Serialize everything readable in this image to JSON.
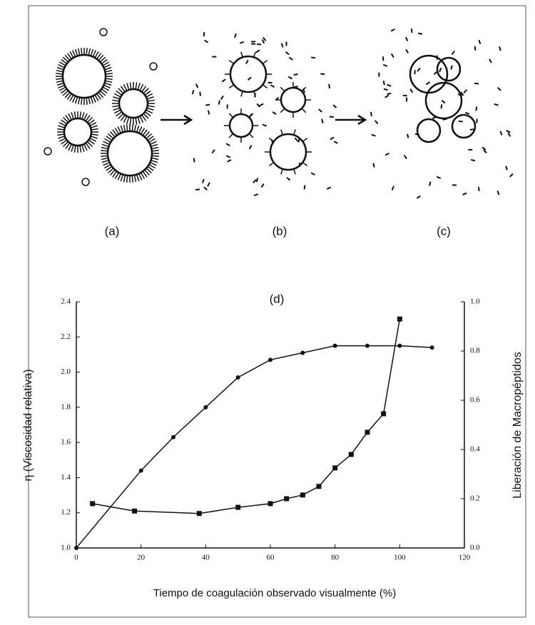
{
  "panels": [
    "(a)",
    "(b)",
    "(c)"
  ],
  "chart_data": {
    "type": "line",
    "title": "(d)",
    "x_label": "Tiempo de coagulación observado visualmente (%)",
    "y_label": "η (Viscosidad relativa)",
    "y2_label": "Liberación de Macropéptidos",
    "xlim": [
      0,
      120
    ],
    "xticks": [
      0,
      20,
      40,
      60,
      80,
      100,
      120
    ],
    "ylim": [
      1.0,
      2.4
    ],
    "yticks": [
      {
        "value": 1.0,
        "label": "1.0"
      },
      1.2,
      1.4,
      1.6,
      1.8,
      {
        "value": 2.0,
        "label": "2.0"
      },
      2.2,
      2.4
    ],
    "y2lim": [
      0.0,
      1.0
    ],
    "y2ticks": [
      {
        "value": 0.0,
        "label": "0.0"
      },
      0.2,
      0.4,
      0.6,
      0.8,
      {
        "value": 1.0,
        "label": "1.0"
      }
    ],
    "series": [
      {
        "color": "#111111",
        "marker": "circle",
        "x": [
          0,
          20,
          30,
          40,
          50,
          60,
          70,
          80,
          90,
          100,
          110
        ],
        "values": [
          1.0,
          1.44,
          1.63,
          1.8,
          1.97,
          2.07,
          2.11,
          2.15,
          2.15,
          2.15,
          2.14
        ]
      },
      {
        "color": "#111111",
        "marker": "square",
        "axis": "y2",
        "x": [
          5,
          18,
          38,
          50,
          60,
          65,
          70,
          75,
          80,
          85,
          90,
          95,
          100
        ],
        "values": [
          0.18,
          0.15,
          0.14,
          0.165,
          0.18,
          0.2,
          0.215,
          0.25,
          0.325,
          0.38,
          0.47,
          0.545,
          0.93
        ]
      }
    ]
  }
}
